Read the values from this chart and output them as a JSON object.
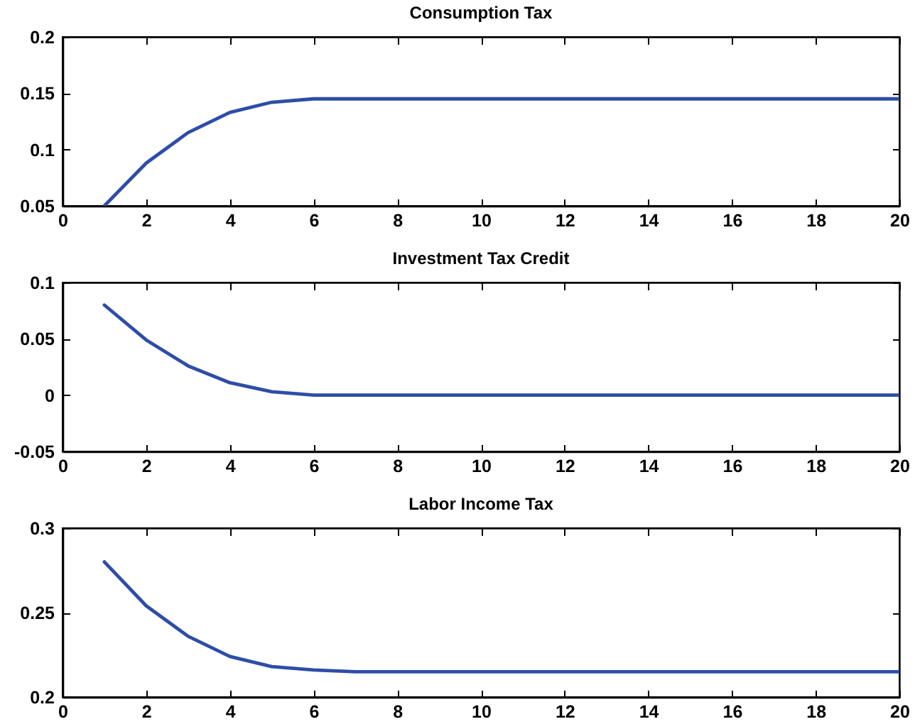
{
  "chart_data": [
    {
      "type": "line",
      "title": "Consumption Tax",
      "x": [
        1,
        2,
        3,
        4,
        5,
        6,
        7,
        8,
        9,
        10,
        11,
        12,
        13,
        14,
        15,
        16,
        17,
        18,
        19,
        20
      ],
      "series": [
        {
          "color": "#2e4da7",
          "values": [
            0.05,
            0.088,
            0.115,
            0.133,
            0.142,
            0.145,
            0.145,
            0.145,
            0.145,
            0.145,
            0.145,
            0.145,
            0.145,
            0.145,
            0.145,
            0.145,
            0.145,
            0.145,
            0.145,
            0.145
          ]
        }
      ],
      "xlim": [
        0,
        20
      ],
      "xticks": [
        0,
        2,
        4,
        6,
        8,
        10,
        12,
        14,
        16,
        18,
        20
      ],
      "ylim": [
        0.05,
        0.2
      ],
      "yticks": [
        0.05,
        0.1,
        0.15,
        0.2
      ],
      "grid": false
    },
    {
      "type": "line",
      "title": "Investment Tax Credit",
      "x": [
        1,
        2,
        3,
        4,
        5,
        6,
        7,
        8,
        9,
        10,
        11,
        12,
        13,
        14,
        15,
        16,
        17,
        18,
        19,
        20
      ],
      "series": [
        {
          "color": "#2e4da7",
          "values": [
            0.08,
            0.049,
            0.026,
            0.011,
            0.003,
            0,
            0,
            0,
            0,
            0,
            0,
            0,
            0,
            0,
            0,
            0,
            0,
            0,
            0,
            0
          ]
        }
      ],
      "xlim": [
        0,
        20
      ],
      "xticks": [
        0,
        2,
        4,
        6,
        8,
        10,
        12,
        14,
        16,
        18,
        20
      ],
      "ylim": [
        -0.05,
        0.1
      ],
      "yticks": [
        -0.05,
        0,
        0.05,
        0.1
      ],
      "grid": false
    },
    {
      "type": "line",
      "title": "Labor Income Tax",
      "x": [
        1,
        2,
        3,
        4,
        5,
        6,
        7,
        8,
        9,
        10,
        11,
        12,
        13,
        14,
        15,
        16,
        17,
        18,
        19,
        20
      ],
      "series": [
        {
          "color": "#2e4da7",
          "values": [
            0.28,
            0.254,
            0.236,
            0.224,
            0.218,
            0.216,
            0.215,
            0.215,
            0.215,
            0.215,
            0.215,
            0.215,
            0.215,
            0.215,
            0.215,
            0.215,
            0.215,
            0.215,
            0.215,
            0.215
          ]
        }
      ],
      "xlim": [
        0,
        20
      ],
      "xticks": [
        0,
        2,
        4,
        6,
        8,
        10,
        12,
        14,
        16,
        18,
        20
      ],
      "ylim": [
        0.2,
        0.3
      ],
      "yticks": [
        0.2,
        0.25,
        0.3
      ],
      "grid": false
    }
  ]
}
